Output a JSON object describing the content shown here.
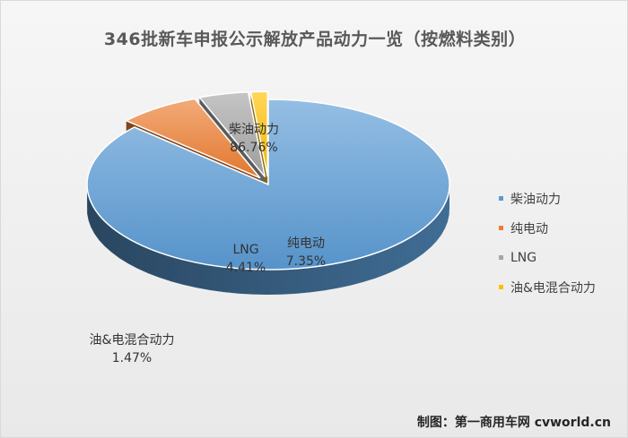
{
  "chart_data": {
    "type": "pie",
    "title": "346批新车申报公示解放产品动力一览（按燃料类别）",
    "slices": [
      {
        "name": "柴油动力",
        "value": 86.76,
        "label": "86.76%",
        "color": "#5b9bd5"
      },
      {
        "name": "纯电动",
        "value": 7.35,
        "label": "7.35%",
        "color": "#ed7d31"
      },
      {
        "name": "LNG",
        "value": 4.41,
        "label": "4.41%",
        "color": "#a5a5a5"
      },
      {
        "name": "油&电混合动力",
        "value": 1.47,
        "label": "1.47%",
        "color": "#ffc000"
      }
    ],
    "legend_position": "right"
  },
  "credit": "制图：第一商用车网 cvworld.cn"
}
